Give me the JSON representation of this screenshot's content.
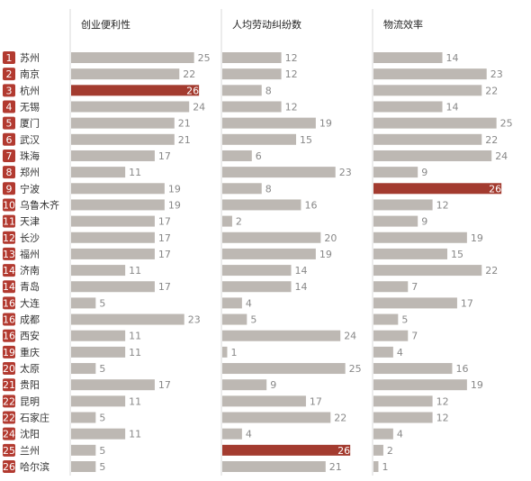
{
  "chart_data": {
    "type": "bar",
    "orientation": "horizontal",
    "ranks": [
      1,
      2,
      3,
      4,
      5,
      6,
      7,
      8,
      9,
      10,
      11,
      12,
      13,
      14,
      14,
      16,
      16,
      16,
      19,
      20,
      21,
      22,
      22,
      24,
      25,
      26
    ],
    "categories": [
      "苏州",
      "南京",
      "杭州",
      "无锡",
      "厦门",
      "武汉",
      "珠海",
      "郑州",
      "宁波",
      "乌鲁木齐",
      "天津",
      "长沙",
      "福州",
      "济南",
      "青岛",
      "大连",
      "成都",
      "西安",
      "重庆",
      "太原",
      "贵阳",
      "昆明",
      "石家庄",
      "沈阳",
      "兰州",
      "哈尔滨"
    ],
    "xlim": [
      0,
      30
    ],
    "color": "#bdb8b3",
    "highlight_color": "#a33b2f",
    "rank_color": "#b23a30",
    "series": [
      {
        "name": "创业便利性",
        "values": [
          25,
          22,
          26,
          24,
          21,
          21,
          17,
          11,
          19,
          19,
          17,
          17,
          17,
          11,
          17,
          5,
          23,
          11,
          11,
          5,
          17,
          11,
          5,
          11,
          5,
          5
        ]
      },
      {
        "name": "人均劳动纠纷数",
        "values": [
          12,
          12,
          8,
          12,
          19,
          15,
          6,
          23,
          8,
          16,
          2,
          20,
          19,
          14,
          14,
          4,
          5,
          24,
          1,
          25,
          9,
          17,
          22,
          4,
          26,
          21
        ]
      },
      {
        "name": "物流效率",
        "values": [
          14,
          23,
          22,
          14,
          25,
          22,
          24,
          9,
          26,
          12,
          9,
          19,
          15,
          22,
          7,
          17,
          5,
          7,
          4,
          16,
          19,
          12,
          12,
          4,
          2,
          1
        ]
      }
    ]
  }
}
